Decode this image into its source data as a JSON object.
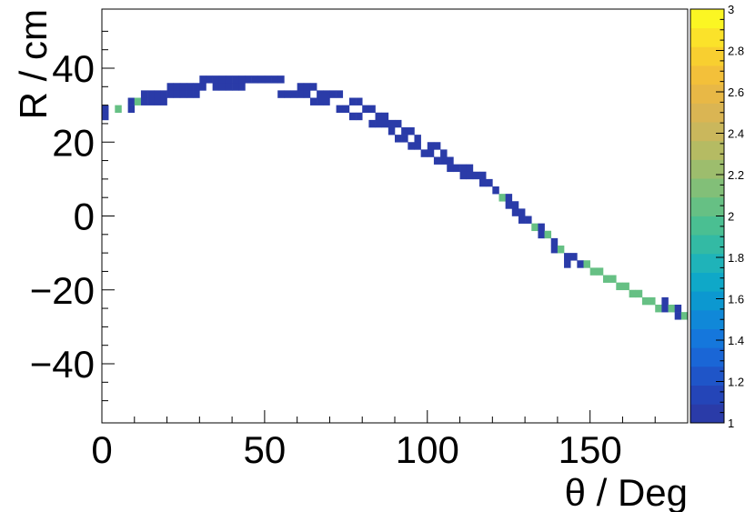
{
  "chart_data": {
    "type": "heatmap",
    "title": "",
    "xlabel": "θ / Deg",
    "ylabel": "R / cm",
    "xlim": [
      0,
      180
    ],
    "ylim": [
      -56,
      56
    ],
    "xticks": [
      0,
      50,
      100,
      150
    ],
    "xtick_labels": [
      "0",
      "50",
      "100",
      "150"
    ],
    "yticks": [
      -40,
      -20,
      0,
      20,
      40
    ],
    "ytick_labels": [
      "−40",
      "−20",
      "0",
      "20",
      "40"
    ],
    "zlim": [
      1,
      3
    ],
    "zticks": [
      1,
      1.2,
      1.4,
      1.6,
      1.8,
      2,
      2.2,
      2.4,
      2.6,
      2.8,
      3
    ],
    "ztick_labels": [
      "1",
      "1.2",
      "1.4",
      "1.6",
      "1.8",
      "2",
      "2.2",
      "2.4",
      "2.6",
      "2.8",
      "3"
    ],
    "palette": [
      "#2a3ba8",
      "#2445b8",
      "#1f55c8",
      "#1a66d6",
      "#1577dc",
      "#1088d8",
      "#0c98d0",
      "#0fa8c8",
      "#1fb3b9",
      "#33baa4",
      "#4abf92",
      "#66c084",
      "#82bf78",
      "#9dbd6d",
      "#b5bb63",
      "#cab75c",
      "#dab553",
      "#e8b846",
      "#f3c03a",
      "#f8cf30",
      "#fbe22a",
      "#fbf623"
    ],
    "bin_width_x": 2,
    "bin_height_y": 2,
    "bins": [
      {
        "x": 1,
        "y": 29,
        "z": 1
      },
      {
        "x": 1,
        "y": 27,
        "z": 1
      },
      {
        "x": 5,
        "y": 29,
        "z": 2
      },
      {
        "x": 9,
        "y": 31,
        "z": 1
      },
      {
        "x": 9,
        "y": 29,
        "z": 1
      },
      {
        "x": 11,
        "y": 31,
        "z": 2
      },
      {
        "x": 13,
        "y": 33,
        "z": 1
      },
      {
        "x": 13,
        "y": 31,
        "z": 1
      },
      {
        "x": 15,
        "y": 33,
        "z": 1
      },
      {
        "x": 15,
        "y": 31,
        "z": 1
      },
      {
        "x": 17,
        "y": 33,
        "z": 1
      },
      {
        "x": 17,
        "y": 31,
        "z": 1
      },
      {
        "x": 19,
        "y": 33,
        "z": 1
      },
      {
        "x": 19,
        "y": 31,
        "z": 1
      },
      {
        "x": 21,
        "y": 35,
        "z": 1
      },
      {
        "x": 21,
        "y": 33,
        "z": 1
      },
      {
        "x": 23,
        "y": 35,
        "z": 1
      },
      {
        "x": 23,
        "y": 33,
        "z": 1
      },
      {
        "x": 25,
        "y": 35,
        "z": 1
      },
      {
        "x": 25,
        "y": 33,
        "z": 1
      },
      {
        "x": 27,
        "y": 35,
        "z": 1
      },
      {
        "x": 27,
        "y": 33,
        "z": 1
      },
      {
        "x": 29,
        "y": 35,
        "z": 1
      },
      {
        "x": 29,
        "y": 33,
        "z": 1
      },
      {
        "x": 31,
        "y": 37,
        "z": 1
      },
      {
        "x": 31,
        "y": 35,
        "z": 1
      },
      {
        "x": 33,
        "y": 37,
        "z": 1
      },
      {
        "x": 35,
        "y": 37,
        "z": 1
      },
      {
        "x": 35,
        "y": 35,
        "z": 1
      },
      {
        "x": 37,
        "y": 37,
        "z": 1
      },
      {
        "x": 37,
        "y": 35,
        "z": 1
      },
      {
        "x": 39,
        "y": 37,
        "z": 1
      },
      {
        "x": 39,
        "y": 35,
        "z": 1
      },
      {
        "x": 41,
        "y": 37,
        "z": 1
      },
      {
        "x": 41,
        "y": 35,
        "z": 1
      },
      {
        "x": 43,
        "y": 37,
        "z": 1
      },
      {
        "x": 43,
        "y": 35,
        "z": 1
      },
      {
        "x": 45,
        "y": 37,
        "z": 1
      },
      {
        "x": 47,
        "y": 37,
        "z": 1
      },
      {
        "x": 49,
        "y": 37,
        "z": 1
      },
      {
        "x": 51,
        "y": 37,
        "z": 1
      },
      {
        "x": 53,
        "y": 37,
        "z": 1
      },
      {
        "x": 55,
        "y": 37,
        "z": 1
      },
      {
        "x": 55,
        "y": 33,
        "z": 1
      },
      {
        "x": 57,
        "y": 33,
        "z": 1
      },
      {
        "x": 59,
        "y": 33,
        "z": 1
      },
      {
        "x": 61,
        "y": 35,
        "z": 1
      },
      {
        "x": 61,
        "y": 33,
        "z": 1
      },
      {
        "x": 63,
        "y": 35,
        "z": 1
      },
      {
        "x": 63,
        "y": 33,
        "z": 1
      },
      {
        "x": 65,
        "y": 35,
        "z": 1
      },
      {
        "x": 65,
        "y": 31,
        "z": 1
      },
      {
        "x": 67,
        "y": 33,
        "z": 1
      },
      {
        "x": 67,
        "y": 31,
        "z": 1
      },
      {
        "x": 69,
        "y": 33,
        "z": 1
      },
      {
        "x": 69,
        "y": 31,
        "z": 1
      },
      {
        "x": 71,
        "y": 33,
        "z": 1
      },
      {
        "x": 73,
        "y": 33,
        "z": 1
      },
      {
        "x": 73,
        "y": 29,
        "z": 1
      },
      {
        "x": 75,
        "y": 29,
        "z": 1
      },
      {
        "x": 77,
        "y": 31,
        "z": 1
      },
      {
        "x": 77,
        "y": 27,
        "z": 1
      },
      {
        "x": 79,
        "y": 31,
        "z": 1
      },
      {
        "x": 79,
        "y": 27,
        "z": 1
      },
      {
        "x": 81,
        "y": 29,
        "z": 1
      },
      {
        "x": 83,
        "y": 29,
        "z": 1
      },
      {
        "x": 83,
        "y": 25,
        "z": 1
      },
      {
        "x": 85,
        "y": 27,
        "z": 1
      },
      {
        "x": 85,
        "y": 25,
        "z": 1
      },
      {
        "x": 87,
        "y": 27,
        "z": 1
      },
      {
        "x": 87,
        "y": 25,
        "z": 1
      },
      {
        "x": 89,
        "y": 25,
        "z": 1
      },
      {
        "x": 89,
        "y": 23,
        "z": 1
      },
      {
        "x": 91,
        "y": 25,
        "z": 1
      },
      {
        "x": 91,
        "y": 21,
        "z": 1
      },
      {
        "x": 93,
        "y": 23,
        "z": 1
      },
      {
        "x": 93,
        "y": 21,
        "z": 1
      },
      {
        "x": 95,
        "y": 23,
        "z": 1
      },
      {
        "x": 95,
        "y": 19,
        "z": 1
      },
      {
        "x": 97,
        "y": 21,
        "z": 1
      },
      {
        "x": 97,
        "y": 19,
        "z": 1
      },
      {
        "x": 99,
        "y": 17,
        "z": 1
      },
      {
        "x": 101,
        "y": 19,
        "z": 1
      },
      {
        "x": 101,
        "y": 17,
        "z": 1
      },
      {
        "x": 103,
        "y": 19,
        "z": 1
      },
      {
        "x": 103,
        "y": 15,
        "z": 1
      },
      {
        "x": 105,
        "y": 17,
        "z": 1
      },
      {
        "x": 105,
        "y": 15,
        "z": 1
      },
      {
        "x": 107,
        "y": 15,
        "z": 1
      },
      {
        "x": 107,
        "y": 13,
        "z": 1
      },
      {
        "x": 109,
        "y": 13,
        "z": 1
      },
      {
        "x": 111,
        "y": 13,
        "z": 1
      },
      {
        "x": 111,
        "y": 11,
        "z": 1
      },
      {
        "x": 113,
        "y": 13,
        "z": 1
      },
      {
        "x": 113,
        "y": 11,
        "z": 1
      },
      {
        "x": 115,
        "y": 11,
        "z": 1
      },
      {
        "x": 117,
        "y": 11,
        "z": 1
      },
      {
        "x": 117,
        "y": 9,
        "z": 1
      },
      {
        "x": 119,
        "y": 9,
        "z": 1
      },
      {
        "x": 121,
        "y": 7,
        "z": 1
      },
      {
        "x": 123,
        "y": 5,
        "z": 2
      },
      {
        "x": 125,
        "y": 5,
        "z": 1
      },
      {
        "x": 125,
        "y": 3,
        "z": 1
      },
      {
        "x": 127,
        "y": 3,
        "z": 1
      },
      {
        "x": 127,
        "y": 1,
        "z": 1
      },
      {
        "x": 129,
        "y": 1,
        "z": 1
      },
      {
        "x": 129,
        "y": -1,
        "z": 1
      },
      {
        "x": 131,
        "y": -1,
        "z": 1
      },
      {
        "x": 133,
        "y": -3,
        "z": 2
      },
      {
        "x": 135,
        "y": -3,
        "z": 1
      },
      {
        "x": 135,
        "y": -5,
        "z": 1
      },
      {
        "x": 137,
        "y": -5,
        "z": 2
      },
      {
        "x": 139,
        "y": -7,
        "z": 1
      },
      {
        "x": 139,
        "y": -9,
        "z": 1
      },
      {
        "x": 141,
        "y": -9,
        "z": 2
      },
      {
        "x": 143,
        "y": -11,
        "z": 1
      },
      {
        "x": 143,
        "y": -13,
        "z": 1
      },
      {
        "x": 145,
        "y": -11,
        "z": 1
      },
      {
        "x": 147,
        "y": -13,
        "z": 1
      },
      {
        "x": 149,
        "y": -13,
        "z": 2
      },
      {
        "x": 151,
        "y": -15,
        "z": 2
      },
      {
        "x": 153,
        "y": -15,
        "z": 2
      },
      {
        "x": 155,
        "y": -17,
        "z": 2
      },
      {
        "x": 157,
        "y": -17,
        "z": 2
      },
      {
        "x": 159,
        "y": -19,
        "z": 2
      },
      {
        "x": 161,
        "y": -19,
        "z": 2
      },
      {
        "x": 163,
        "y": -21,
        "z": 2
      },
      {
        "x": 165,
        "y": -21,
        "z": 2
      },
      {
        "x": 167,
        "y": -23,
        "z": 2
      },
      {
        "x": 169,
        "y": -23,
        "z": 2
      },
      {
        "x": 171,
        "y": -25,
        "z": 2
      },
      {
        "x": 173,
        "y": -25,
        "z": 1
      },
      {
        "x": 173,
        "y": -23,
        "z": 1
      },
      {
        "x": 175,
        "y": -25,
        "z": 2
      },
      {
        "x": 177,
        "y": -27,
        "z": 1
      },
      {
        "x": 177,
        "y": -25,
        "z": 1
      },
      {
        "x": 179,
        "y": -27,
        "z": 2
      }
    ]
  }
}
